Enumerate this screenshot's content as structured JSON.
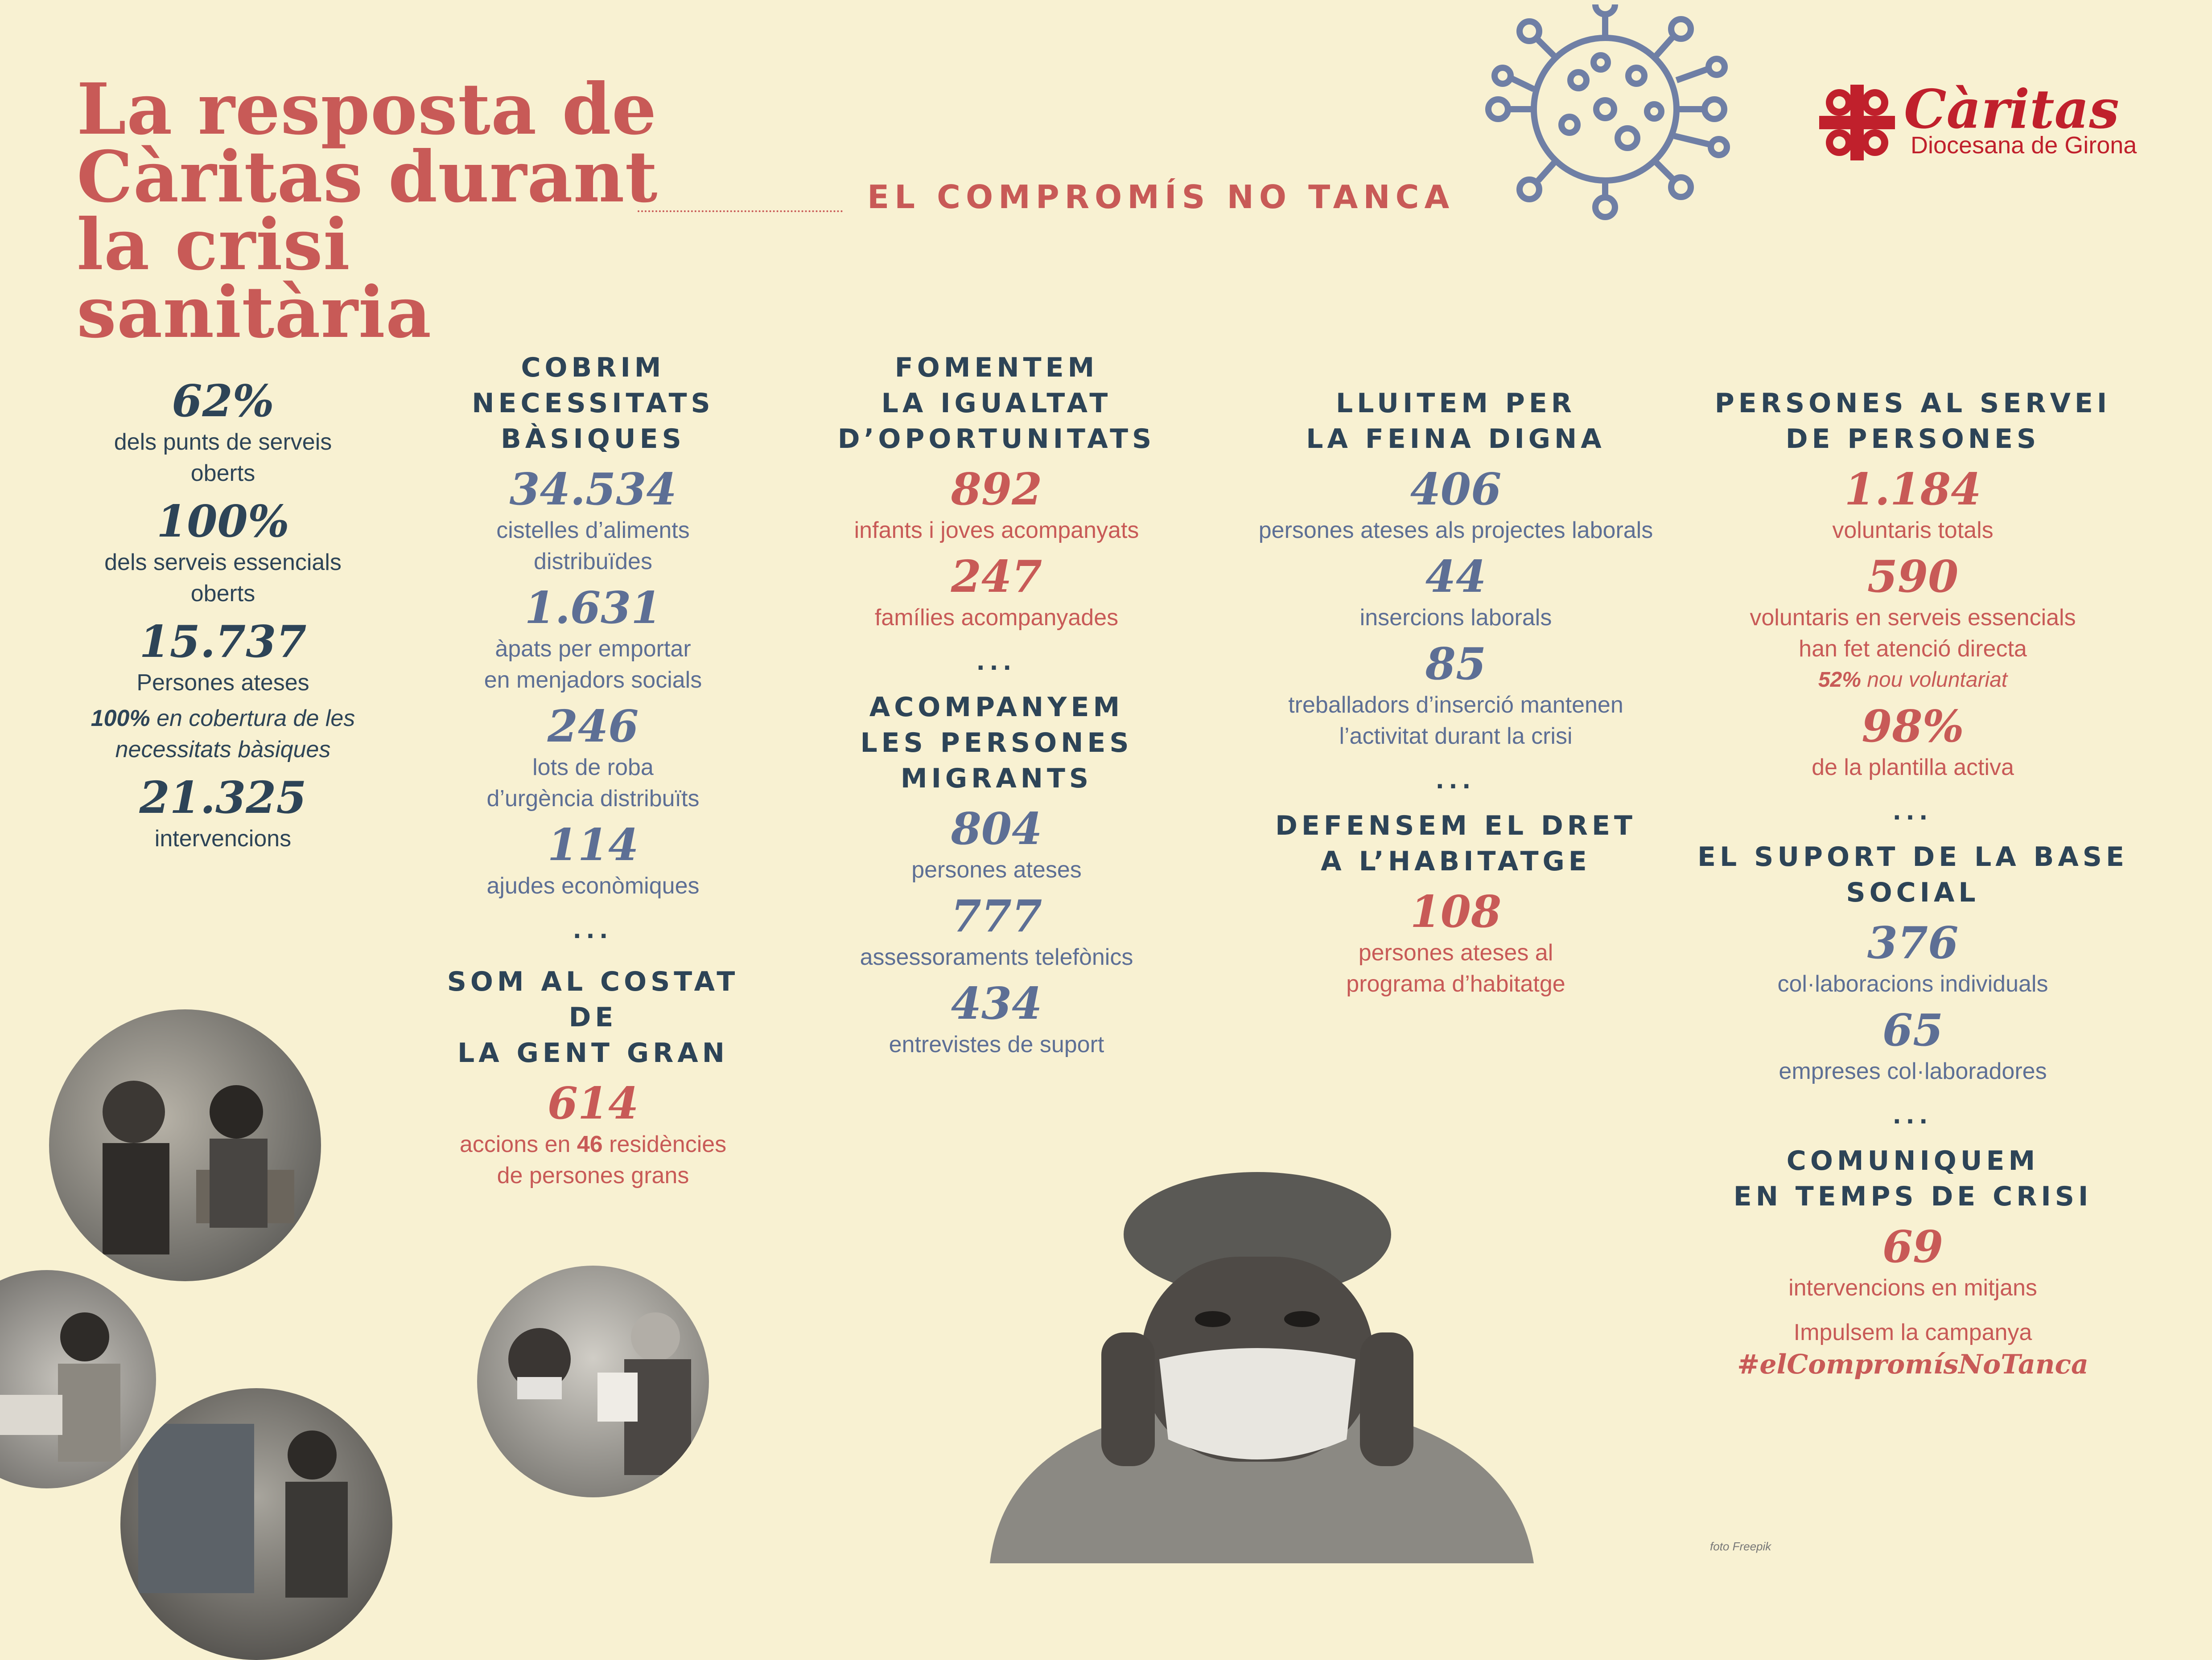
{
  "header": {
    "title_line1": "La resposta de",
    "title_line2": "Càritas durant",
    "title_line3": "la crisi sanitària",
    "tagline": "EL COMPROMÍS NO TANCA"
  },
  "logo": {
    "name": "Càritas",
    "subtitle": "Diocesana de Girona",
    "icon": "caritas-hearts-cross-icon"
  },
  "virus_icon": "coronavirus-icon",
  "summary": [
    {
      "value": "62%",
      "label": "dels punts de serveis\noberts"
    },
    {
      "value": "100%",
      "label": "dels serveis essencials\noberts"
    },
    {
      "value": "15.737",
      "label": "Persones ateses"
    }
  ],
  "summary_note": {
    "pct": "100%",
    "text": " en cobertura de les",
    "text2": "necessitats bàsiques"
  },
  "summary_last": {
    "value": "21.325",
    "label": "intervencions"
  },
  "col2": {
    "heading": "COBRIM\nNECESSITATS\nBÀSIQUES",
    "stats": [
      {
        "value": "34.534",
        "label": "cistelles d’aliments\ndistribuïdes"
      },
      {
        "value": "1.631",
        "label": "àpats per emportar\nen menjadors socials"
      },
      {
        "value": "246",
        "label": "lots de roba\nd’urgència distribuïts"
      },
      {
        "value": "114",
        "label": "ajudes econòmiques"
      }
    ],
    "heading2": "SOM AL COSTAT DE\nLA GENT GRAN",
    "stat2": {
      "value": "614",
      "label_a": "accions en ",
      "label_b": "46",
      "label_c": " residències",
      "label_d": "de persones grans"
    }
  },
  "col3": {
    "heading": "FOMENTEM\nLA IGUALTAT\nD’OPORTUNITATS",
    "stats": [
      {
        "value": "892",
        "label": "infants i joves acompanyats"
      },
      {
        "value": "247",
        "label": "famílies acompanyades"
      }
    ],
    "heading2": "ACOMPANYEM\nLES PERSONES\nMIGRANTS",
    "stats2": [
      {
        "value": "804",
        "label": "persones ateses"
      },
      {
        "value": "777",
        "label": "assessoraments telefònics"
      },
      {
        "value": "434",
        "label": "entrevistes de suport"
      }
    ]
  },
  "col4": {
    "heading": "LLUITEM PER\nLA FEINA DIGNA",
    "stats": [
      {
        "value": "406",
        "label": "persones ateses als projectes laborals"
      },
      {
        "value": "44",
        "label": "insercions laborals"
      },
      {
        "value": "85",
        "label": "treballadors d’inserció mantenen\nl’activitat durant la crisi"
      }
    ],
    "heading2": "DEFENSEM EL DRET\nA L’HABITATGE",
    "stat2": {
      "value": "108",
      "label": "persones ateses al\nprograma d’habitatge"
    }
  },
  "col5": {
    "heading": "PERSONES AL SERVEI\nDE PERSONES",
    "stats": [
      {
        "value": "1.184",
        "label": "voluntaris totals"
      },
      {
        "value": "590",
        "label": "voluntaris en serveis essencials\nhan fet atenció directa"
      }
    ],
    "note": {
      "pct": "52%",
      "text": " nou voluntariat"
    },
    "stat3": {
      "value": "98%",
      "label": "de la plantilla activa"
    },
    "heading2": "EL SUPORT DE LA BASE SOCIAL",
    "stats2": [
      {
        "value": "376",
        "label": "col·laboracions individuals"
      },
      {
        "value": "65",
        "label": "empreses col·laboradores"
      }
    ],
    "heading3": "COMUNIQUEM\nEN TEMPS DE CRISI",
    "stat4": {
      "value": "69",
      "label": "intervencions en mitjans"
    },
    "campaign": "Impulsem la campanya",
    "hashtag": "#elCompromísNoTanca"
  },
  "dots": "...",
  "credit": "foto Freepik"
}
